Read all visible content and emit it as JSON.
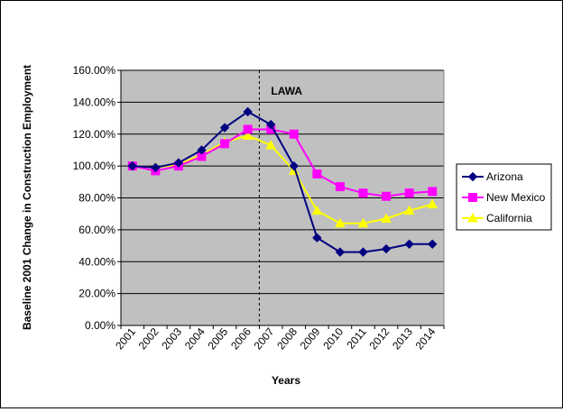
{
  "chart_data": {
    "type": "line",
    "title": "",
    "xlabel": "Years",
    "ylabel": "Baseline 2001  Change in Construction  Employment",
    "categories": [
      "2001",
      "2002",
      "2003",
      "2004",
      "2005",
      "2006",
      "2007",
      "2008",
      "2009",
      "2010",
      "2011",
      "2012",
      "2013",
      "2014"
    ],
    "y_ticks": [
      "0.00%",
      "20.00%",
      "40.00%",
      "60.00%",
      "80.00%",
      "100.00%",
      "120.00%",
      "140.00%",
      "160.00%"
    ],
    "ylim": [
      0,
      160
    ],
    "grid": true,
    "legend_position": "right",
    "annotation": {
      "label": "LAWA",
      "at_category": "2007"
    },
    "series": [
      {
        "name": "Arizona",
        "color": "#000080",
        "marker": "diamond",
        "values": [
          100,
          99,
          102,
          110,
          124,
          134,
          126,
          100,
          55,
          46,
          46,
          48,
          51,
          51
        ]
      },
      {
        "name": "New Mexico",
        "color": "#ff00ff",
        "marker": "square",
        "values": [
          100,
          97,
          100,
          106,
          114,
          123,
          123,
          120,
          95,
          87,
          83,
          81,
          83,
          84
        ]
      },
      {
        "name": "California",
        "color": "#ffff00",
        "marker": "triangle",
        "values": [
          100,
          99,
          101,
          107,
          115,
          119,
          113,
          97,
          72,
          64,
          64,
          67,
          72,
          76
        ]
      }
    ]
  }
}
